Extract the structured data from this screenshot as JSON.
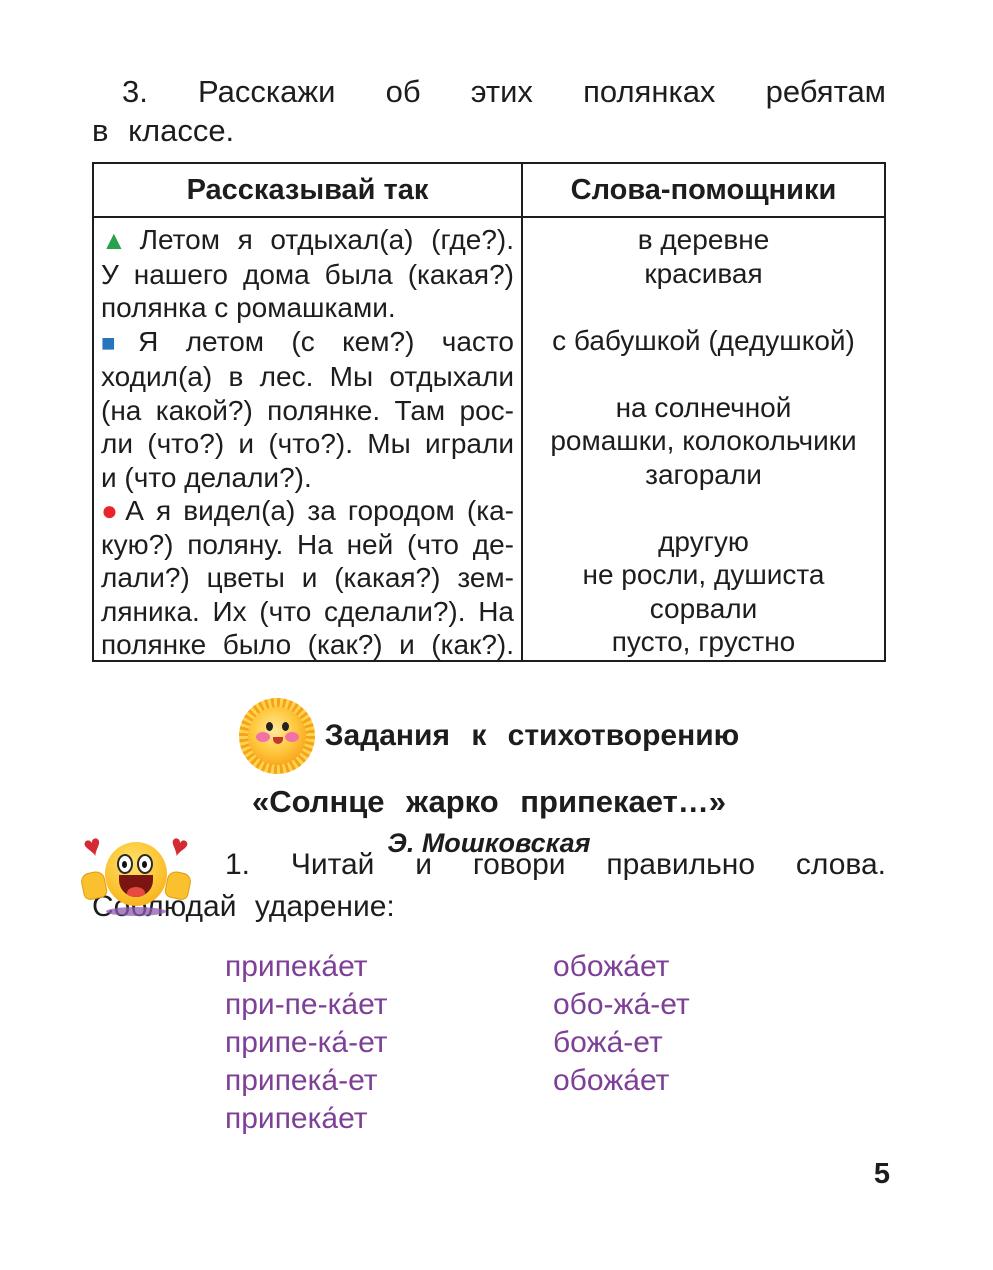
{
  "heading": {
    "line1": "3. Расскажи об этих полянках ребятам",
    "line2": "в  классе."
  },
  "table": {
    "headers": [
      "Рассказывай так",
      "Слова-помощники"
    ],
    "left_lines": [
      {
        "bullet": "green_triangle",
        "text": "Летом я отдыхал(а) (где?).",
        "justify": true
      },
      {
        "bullet": null,
        "text": "У нашего дома была (какая?)",
        "justify": true
      },
      {
        "bullet": null,
        "text": "полянка с ромашками.",
        "justify": false
      },
      {
        "bullet": "blue_square",
        "text": "Я летом (с кем?) часто",
        "justify": true
      },
      {
        "bullet": null,
        "text": "ходил(а) в лес. Мы отдыхали",
        "justify": true
      },
      {
        "bullet": null,
        "text": "(на какой?) полянке. Там рос-",
        "justify": true
      },
      {
        "bullet": null,
        "text": "ли (что?) и (что?). Мы играли",
        "justify": true
      },
      {
        "bullet": null,
        "text": "и (что делали?).",
        "justify": false
      },
      {
        "bullet": "red_circle",
        "text": "А я видел(а) за городом (ка-",
        "justify": true
      },
      {
        "bullet": null,
        "text": "кую?) поляну. На ней (что де-",
        "justify": true
      },
      {
        "bullet": null,
        "text": "лали?) цветы и (какая?) зем-",
        "justify": true
      },
      {
        "bullet": null,
        "text": "ляника. Их (что сделали?). На",
        "justify": true
      },
      {
        "bullet": null,
        "text": "полянке было (как?) и (как?).",
        "justify": true
      }
    ],
    "right_lines": [
      "в деревне",
      "красивая",
      "",
      "с бабушкой (дедушкой)",
      "",
      "на солнечной",
      "ромашки, колокольчики",
      "загорали",
      "",
      "другую",
      "не росли, душиста",
      "сорвали",
      "пусто, грустно"
    ]
  },
  "section": {
    "title_line1": "Задания к стихотворению",
    "title_line2": "«Солнце жарко припекает…»",
    "author": "Э. Мошковская"
  },
  "task": {
    "line1": "1. Читай и говори правильно слова.",
    "line2": "Соблюдай ударение:",
    "words_col1": [
      "припека́ет",
      "при-пе-ка́ет",
      "припе-ка́-ет",
      "припека́-ет",
      "припека́ет"
    ],
    "words_col2": [
      "обожа́ет",
      "обо-жа́-ет",
      "божа́-ет",
      "обожа́ет"
    ]
  },
  "icons": {
    "green_triangle": "▲",
    "blue_square": "■",
    "red_circle": "●",
    "heart": "♥"
  },
  "colors": {
    "text": "#1d1d1b",
    "purple_words": "#7e3f97",
    "bullet_green": "#27a24d",
    "bullet_blue": "#2674bb",
    "bullet_red": "#ea2428"
  },
  "page_number": "5"
}
